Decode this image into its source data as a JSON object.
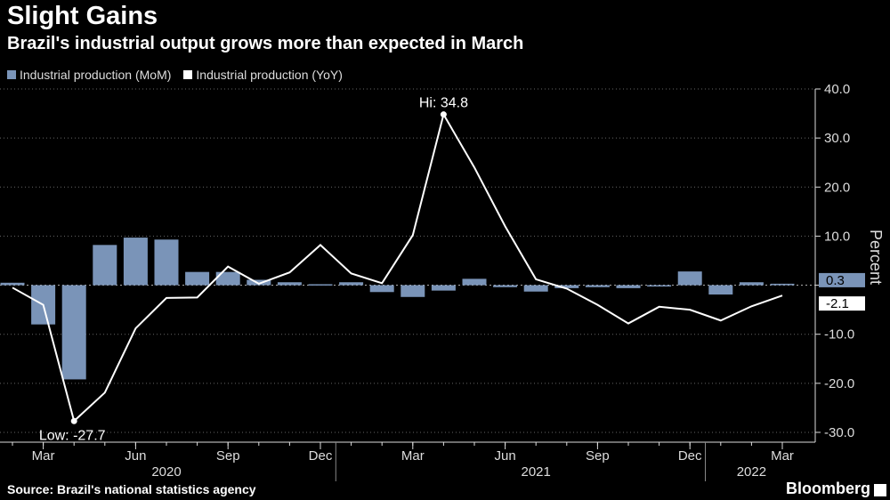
{
  "header": {
    "title": "Slight Gains",
    "subtitle": "Brazil's industrial output grows more than expected in March"
  },
  "footer": {
    "source": "Source: Brazil's national statistics agency",
    "brand": "Bloomberg"
  },
  "colors": {
    "mom": "#7a94b8",
    "yoy": "#ffffff",
    "background": "#000000",
    "grid": "#ffffff"
  },
  "chart_data": {
    "type": "bar",
    "title": "Slight Gains",
    "subtitle": "Brazil's industrial output grows more than expected in March",
    "ylabel": "Percent",
    "ylim": [
      -32,
      40
    ],
    "yticks": [
      40.0,
      30.0,
      20.0,
      10.0,
      0,
      -10.0,
      -20.0,
      -30.0
    ],
    "ytick_labels": [
      "40.0",
      "30.0",
      "20.0",
      "10.0",
      "",
      "-10.0",
      "-20.0",
      "-30.0"
    ],
    "grid": true,
    "grid_style": "dotted horizontal",
    "legend_position": "top-left",
    "categories": [
      "2020-02",
      "2020-03",
      "2020-04",
      "2020-05",
      "2020-06",
      "2020-07",
      "2020-08",
      "2020-09",
      "2020-10",
      "2020-11",
      "2020-12",
      "2021-01",
      "2021-02",
      "2021-03",
      "2021-04",
      "2021-05",
      "2021-06",
      "2021-07",
      "2021-08",
      "2021-09",
      "2021-10",
      "2021-11",
      "2021-12",
      "2022-01",
      "2022-02",
      "2022-03"
    ],
    "x_tick_labels": [
      {
        "label": "Mar",
        "category": "2020-03"
      },
      {
        "label": "Jun",
        "category": "2020-06"
      },
      {
        "label": "Sep",
        "category": "2020-09"
      },
      {
        "label": "Dec",
        "category": "2020-12"
      },
      {
        "label": "Mar",
        "category": "2021-03"
      },
      {
        "label": "Jun",
        "category": "2021-06"
      },
      {
        "label": "Sep",
        "category": "2021-09"
      },
      {
        "label": "Dec",
        "category": "2021-12"
      },
      {
        "label": "Mar",
        "category": "2022-03"
      }
    ],
    "year_labels": [
      {
        "label": "2020",
        "center_category": "2020-07"
      },
      {
        "label": "2021",
        "center_category": "2021-07"
      },
      {
        "label": "2022",
        "center_category": "2022-02"
      }
    ],
    "series": [
      {
        "name": "Industrial production (MoM)",
        "kind": "bar",
        "color": "#7a94b8",
        "values": [
          0.5,
          -8.0,
          -19.2,
          8.2,
          9.7,
          9.3,
          2.7,
          2.7,
          1.1,
          0.6,
          0.2,
          0.6,
          -1.4,
          -2.4,
          -1.1,
          1.3,
          -0.4,
          -1.3,
          -0.6,
          -0.4,
          -0.6,
          0.0,
          2.8,
          -1.9,
          0.6,
          0.3
        ]
      },
      {
        "name": "Industrial production (YoY)",
        "kind": "line",
        "color": "#ffffff",
        "values": [
          -0.5,
          -4.0,
          -27.7,
          -21.9,
          -8.8,
          -2.6,
          -2.5,
          3.8,
          0.3,
          2.6,
          8.2,
          2.4,
          0.4,
          10.2,
          34.8,
          24.0,
          12.0,
          1.2,
          -0.7,
          -4.0,
          -7.8,
          -4.4,
          -5.0,
          -7.2,
          -4.3,
          -2.1
        ]
      }
    ],
    "annotations": [
      {
        "text": "Hi: 34.8",
        "category": "2021-04",
        "value": 34.8
      },
      {
        "text": "Low: -27.7",
        "category": "2020-04",
        "value": -27.7
      }
    ],
    "end_labels": [
      {
        "text": "0.3",
        "series": "Industrial production (MoM)",
        "value": 0.3
      },
      {
        "text": "-2.1",
        "series": "Industrial production (YoY)",
        "value": -2.1
      }
    ]
  }
}
